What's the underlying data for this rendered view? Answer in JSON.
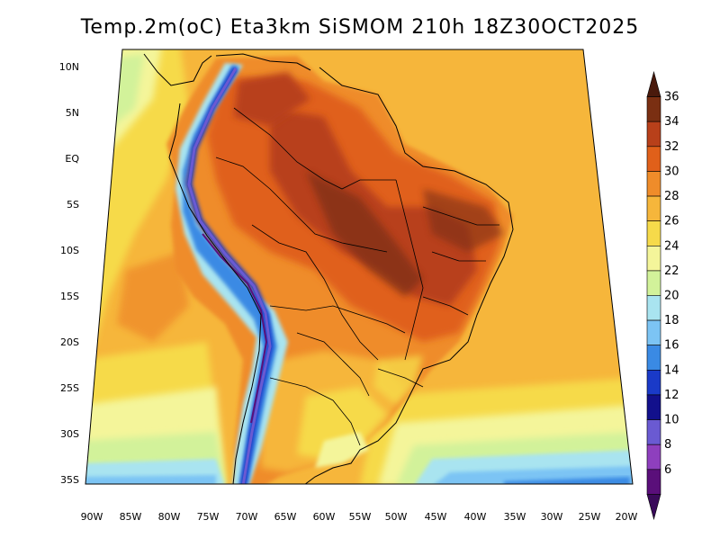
{
  "title": "Temp.2m(oC) Eta3km SiSMOM 210h 18Z30OCT2025",
  "map": {
    "lat_labels": [
      "10N",
      "5N",
      "EQ",
      "5S",
      "10S",
      "15S",
      "20S",
      "25S",
      "30S",
      "35S"
    ],
    "lon_labels": [
      "90W",
      "85W",
      "80W",
      "75W",
      "70W",
      "65W",
      "60W",
      "55W",
      "50W",
      "45W",
      "40W",
      "35W",
      "30W",
      "25W",
      "20W"
    ]
  },
  "colorbar": {
    "labels": [
      "36",
      "34",
      "32",
      "30",
      "28",
      "26",
      "24",
      "22",
      "20",
      "18",
      "16",
      "14",
      "12",
      "10",
      "8",
      "6"
    ],
    "colors": [
      "#4a1a0c",
      "#7a2f12",
      "#b8401a",
      "#e0601a",
      "#ef8c2a",
      "#f6b63b",
      "#f6da4a",
      "#f4f59a",
      "#d2f29a",
      "#a9e4f0",
      "#7cc4f4",
      "#3a8ae4",
      "#1a3ac8",
      "#12108c",
      "#6a5ad2",
      "#8e3fbe",
      "#5a0f7a",
      "#3a0a5a"
    ]
  }
}
